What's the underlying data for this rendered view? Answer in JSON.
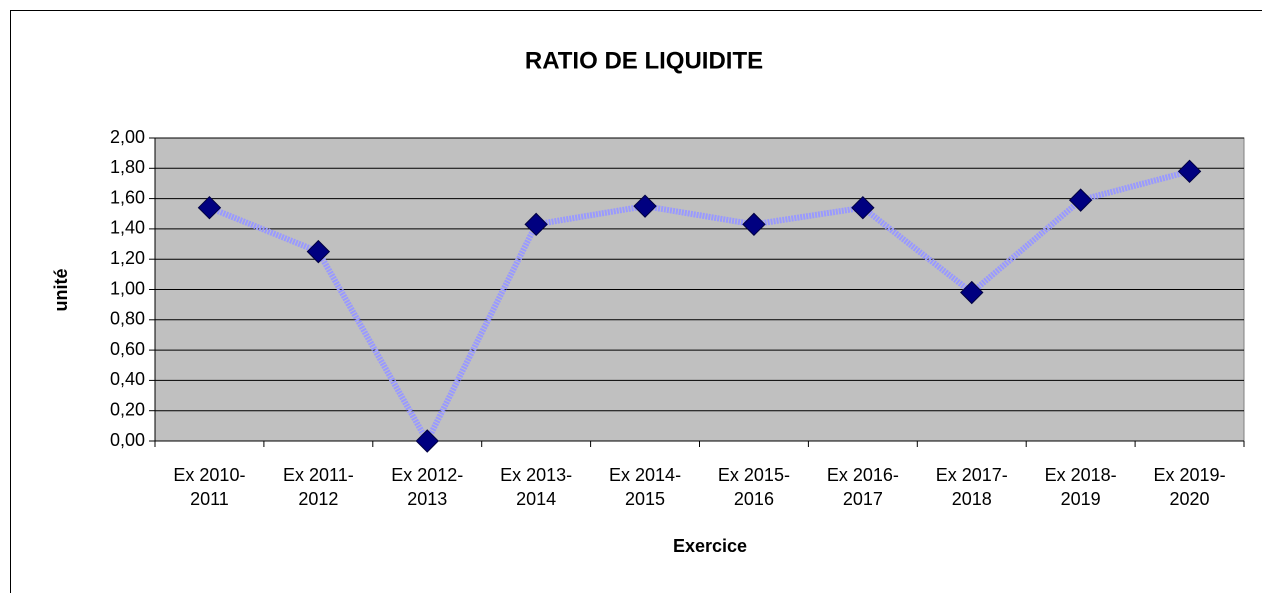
{
  "chart_data": {
    "type": "line",
    "title": "RATIO DE LIQUIDITE",
    "x_label": "Exercice",
    "y_label": "unité",
    "categories": [
      "Ex 2010-2011",
      "Ex 2011-2012",
      "Ex 2012-2013",
      "Ex 2013-2014",
      "Ex 2014-2015",
      "Ex 2015-2016",
      "Ex 2016-2017",
      "Ex 2017-2018",
      "Ex 2018-2019",
      "Ex 2019-2020"
    ],
    "series": [
      {
        "name": "unité",
        "color": "#9999ff",
        "marker_color": "#000080",
        "values": [
          1.54,
          1.25,
          0.0,
          1.43,
          1.55,
          1.43,
          1.54,
          0.98,
          1.59,
          1.78
        ]
      }
    ],
    "ylim": [
      0,
      2
    ],
    "yticks": [
      {
        "value": 0,
        "label": "0,00"
      },
      {
        "value": 0.2,
        "label": "0,20"
      },
      {
        "value": 0.4,
        "label": "0,40"
      },
      {
        "value": 0.6,
        "label": "0,60"
      },
      {
        "value": 0.8,
        "label": "0,80"
      },
      {
        "value": 1,
        "label": "1,00"
      },
      {
        "value": 1.2,
        "label": "1,20"
      },
      {
        "value": 1.4,
        "label": "1,40"
      },
      {
        "value": 1.6,
        "label": "1,60"
      },
      {
        "value": 1.8,
        "label": "1,80"
      },
      {
        "value": 2,
        "label": "2,00"
      }
    ],
    "grid": true,
    "plot_background": "#c0c0c0"
  }
}
